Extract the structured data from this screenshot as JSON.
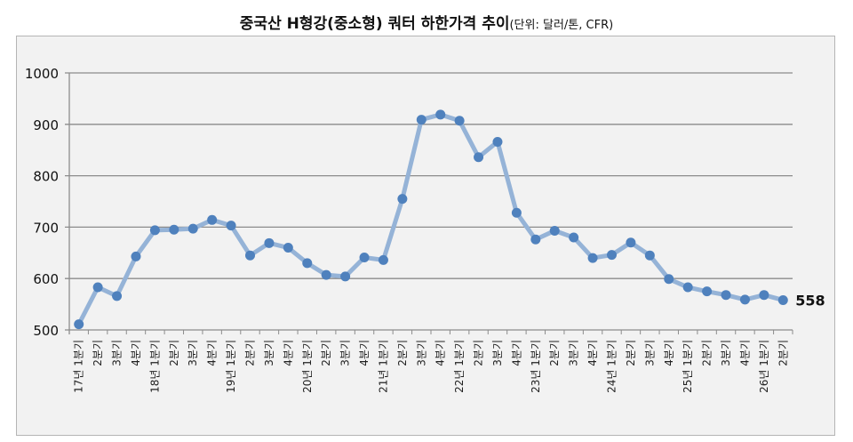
{
  "chart_data": {
    "type": "line",
    "title": "중국산 H형강(중소형) 쿼터 하한가격 추이",
    "unit_note": "(단위: 달러/톤, CFR)",
    "xlabel": "",
    "ylabel": "",
    "ylim": [
      500,
      1000
    ],
    "yticks": [
      500,
      600,
      700,
      800,
      900,
      1000
    ],
    "grid": true,
    "legend": "none",
    "color": "#4f81bd",
    "line_color": "#95b3d7",
    "categories": [
      "17년 1분기",
      "2분기",
      "3분기",
      "4분기",
      "18년 1분기",
      "2분기",
      "3분기",
      "4분기",
      "19년 1분기",
      "2분기",
      "3분기",
      "4분기",
      "20년 1분기",
      "2분기",
      "3분기",
      "4분기",
      "21년 1분기",
      "2분기",
      "3분기",
      "4분기",
      "22년 1분기",
      "2분기",
      "3분기",
      "4분기",
      "23년 1분기",
      "2분기",
      "3분기",
      "4분기",
      "24년 1분기",
      "2분기",
      "3분기",
      "4분기",
      "25년 1분기",
      "2분기",
      "3분기",
      "4분기",
      "26년 1분기",
      "2분기"
    ],
    "values": [
      511,
      583,
      566,
      643,
      694,
      695,
      697,
      714,
      703,
      645,
      669,
      660,
      630,
      607,
      604,
      641,
      636,
      755,
      909,
      919,
      907,
      836,
      866,
      728,
      676,
      693,
      680,
      640,
      646,
      670,
      645,
      599,
      583,
      575,
      568,
      559,
      568,
      558
    ],
    "annotations": [
      {
        "point": "26년 2분기",
        "text": "558"
      }
    ]
  }
}
